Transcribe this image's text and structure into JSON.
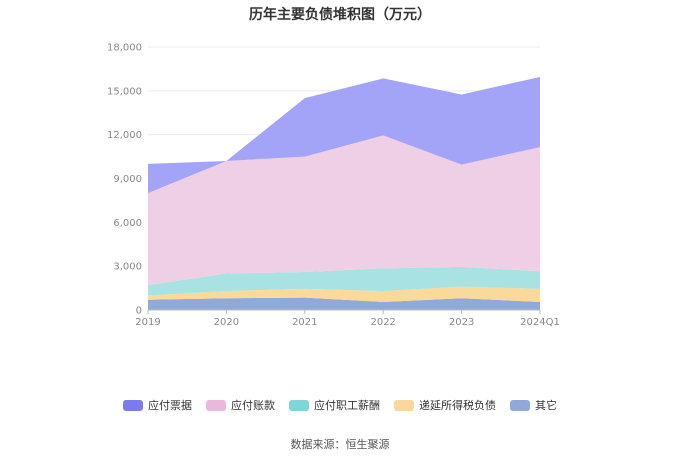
{
  "chart_data": {
    "type": "area",
    "stacked": true,
    "title": "历年主要负债堆积图（万元）",
    "categories": [
      "2019",
      "2020",
      "2021",
      "2022",
      "2023",
      "2024Q1"
    ],
    "yticks": [
      "0",
      "3,000",
      "6,000",
      "9,000",
      "12,000",
      "15,000",
      "18,000"
    ],
    "ylim": [
      0,
      18000
    ],
    "grid": true,
    "legend_position": "bottom",
    "series": [
      {
        "name": "其它",
        "color": "#8fa9d9",
        "values": [
          700,
          800,
          850,
          550,
          800,
          550
        ]
      },
      {
        "name": "递延所得税负债",
        "color": "#fbd99a",
        "values": [
          300,
          500,
          600,
          750,
          800,
          900
        ]
      },
      {
        "name": "应付职工薪酬",
        "color": "#a8e2e2",
        "values": [
          700,
          1200,
          1150,
          1550,
          1350,
          1200
        ]
      },
      {
        "name": "应付账款",
        "color": "#efcfe5",
        "values": [
          6300,
          7700,
          7900,
          9100,
          7000,
          8500
        ]
      },
      {
        "name": "应付票据",
        "color": "#a3a3f7",
        "values": [
          2000,
          0,
          4000,
          3900,
          4800,
          4800
        ]
      }
    ],
    "legend_order": [
      "应付票据",
      "应付账款",
      "应付职工薪酬",
      "递延所得税负债",
      "其它"
    ],
    "legend_colors": {
      "应付票据": "#7b7bf0",
      "应付账款": "#eab8dc",
      "应付职工薪酬": "#7fd6d6",
      "递延所得税负债": "#fad79a",
      "其它": "#8fa9d9"
    }
  },
  "source_text": "数据来源：恒生聚源"
}
